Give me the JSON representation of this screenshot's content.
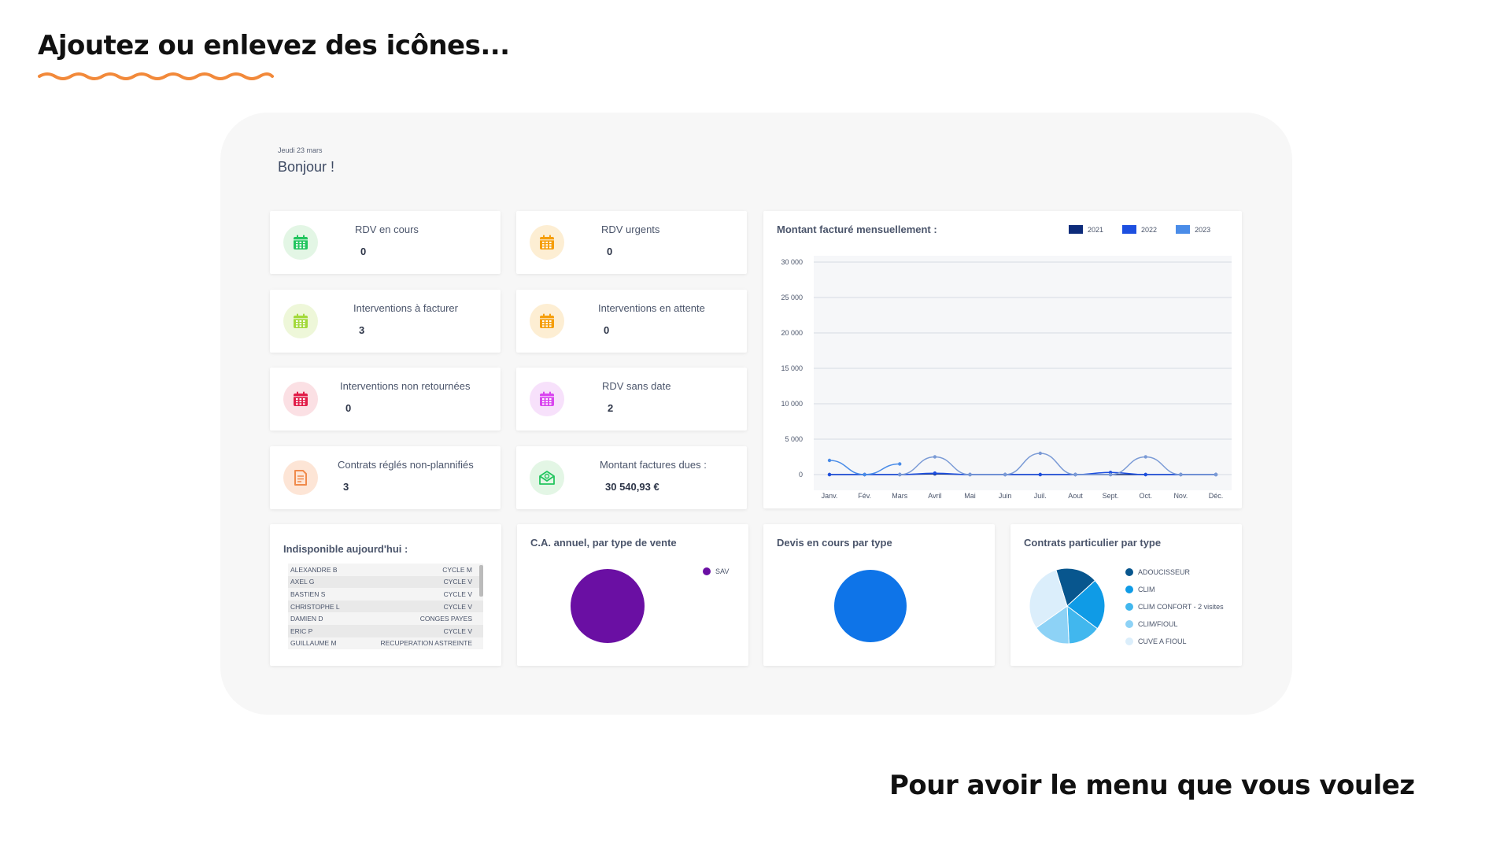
{
  "headline": "Ajoutez ou enlevez des icônes...",
  "footer": "Pour avoir le menu que vous voulez",
  "dashboard": {
    "date": "Jeudi 23 mars",
    "greeting": "Bonjour !"
  },
  "stats": [
    {
      "label": "RDV en cours",
      "value": "0",
      "icon": "calendar-icon",
      "color": "#22c55e",
      "bg": "#e3f6e5"
    },
    {
      "label": "RDV urgents",
      "value": "0",
      "icon": "calendar-icon",
      "color": "#f59e0b",
      "bg": "#fdeed3"
    },
    {
      "label": "Interventions à facturer",
      "value": "3",
      "icon": "calendar-icon",
      "color": "#a3d93b",
      "bg": "#eef7d9"
    },
    {
      "label": "Interventions en attente",
      "value": "0",
      "icon": "calendar-icon",
      "color": "#f59e0b",
      "bg": "#fdeed3"
    },
    {
      "label": "Interventions non retournées",
      "value": "0",
      "icon": "calendar-icon",
      "color": "#e11d48",
      "bg": "#fbe0e4"
    },
    {
      "label": "RDV sans date",
      "value": "2",
      "icon": "calendar-icon",
      "color": "#d946ef",
      "bg": "#f7e1fb"
    },
    {
      "label": "Contrats réglés non-plannifiés",
      "value": "3",
      "icon": "document-icon",
      "color": "#f08a4b",
      "bg": "#fde5d6"
    },
    {
      "label": "Montant factures dues :",
      "value": "30 540,93 €",
      "icon": "envelope-money-icon",
      "color": "#22c55e",
      "bg": "#e3f6e5"
    }
  ],
  "monthly_chart": {
    "title": "Montant facturé mensuellement :",
    "legend": [
      "2021",
      "2022",
      "2023"
    ]
  },
  "chart_data": [
    {
      "type": "line",
      "title": "Montant facturé mensuellement :",
      "x": [
        "Janv.",
        "Fév.",
        "Mars",
        "Avril",
        "Mai",
        "Juin",
        "Juil.",
        "Aout",
        "Sept.",
        "Oct.",
        "Nov.",
        "Déc."
      ],
      "ylim": [
        0,
        30000
      ],
      "yticks": [
        "0",
        "5 000",
        "10 000",
        "15 000",
        "20 000",
        "25 000",
        "30 000"
      ],
      "grid": true,
      "legend_position": "top-right",
      "series": [
        {
          "name": "2021",
          "color": "#0d2b7a",
          "values": [
            0,
            0,
            0,
            100,
            0,
            0,
            0,
            0,
            0,
            0,
            0,
            0
          ]
        },
        {
          "name": "2022",
          "color": "#1d4fe0",
          "values": [
            0,
            0,
            0,
            200,
            0,
            0,
            0,
            0,
            300,
            0,
            0,
            0
          ]
        },
        {
          "name": "2023",
          "color": "#4a8ce8",
          "values": [
            2000,
            0,
            1500,
            null,
            null,
            null,
            null,
            null,
            null,
            null,
            null,
            null
          ]
        },
        {
          "name": "",
          "color": "#7b9bd6",
          "values": [
            null,
            null,
            0,
            2500,
            0,
            0,
            3000,
            0,
            0,
            2500,
            0,
            0
          ]
        }
      ]
    },
    {
      "type": "pie",
      "title": "C.A. annuel, par type de vente",
      "categories": [
        "SAV"
      ],
      "values": [
        100
      ],
      "colors": [
        "#6a0fa3"
      ]
    },
    {
      "type": "pie",
      "title": "Devis en cours par type",
      "categories": [
        ""
      ],
      "values": [
        100
      ],
      "colors": [
        "#0e74e8"
      ]
    },
    {
      "type": "pie",
      "title": "Contrats particulier par type",
      "categories": [
        "ADOUCISSEUR",
        "CLIM",
        "CLIM CONFORT - 2 visites",
        "CLIM/FIOUL",
        "CUVE A FIOUL"
      ],
      "values": [
        18,
        22,
        14,
        16,
        30
      ],
      "colors": [
        "#08568e",
        "#0f9be6",
        "#41b7ee",
        "#8dd2f6",
        "#dbeefb"
      ]
    }
  ],
  "unavailable": {
    "title": "Indisponible aujourd'hui :",
    "rows": [
      {
        "name": "ALEXANDRE B",
        "reason": "CYCLE M"
      },
      {
        "name": "AXEL G",
        "reason": "CYCLE V"
      },
      {
        "name": "BASTIEN S",
        "reason": "CYCLE V"
      },
      {
        "name": "CHRISTOPHE L",
        "reason": "CYCLE V"
      },
      {
        "name": "DAMIEN D",
        "reason": "CONGES PAYES"
      },
      {
        "name": "ERIC P",
        "reason": "CYCLE V"
      },
      {
        "name": "GUILLAUME M",
        "reason": "RECUPERATION ASTREINTE"
      }
    ]
  },
  "ca_card": {
    "title": "C.A. annuel, par type de vente",
    "legend": [
      "SAV"
    ]
  },
  "devis_card": {
    "title": "Devis en cours par type"
  },
  "contrats_card": {
    "title": "Contrats particulier par type",
    "legend": [
      "ADOUCISSEUR",
      "CLIM",
      "CLIM CONFORT - 2 visites",
      "CLIM/FIOUL",
      "CUVE A FIOUL"
    ]
  }
}
